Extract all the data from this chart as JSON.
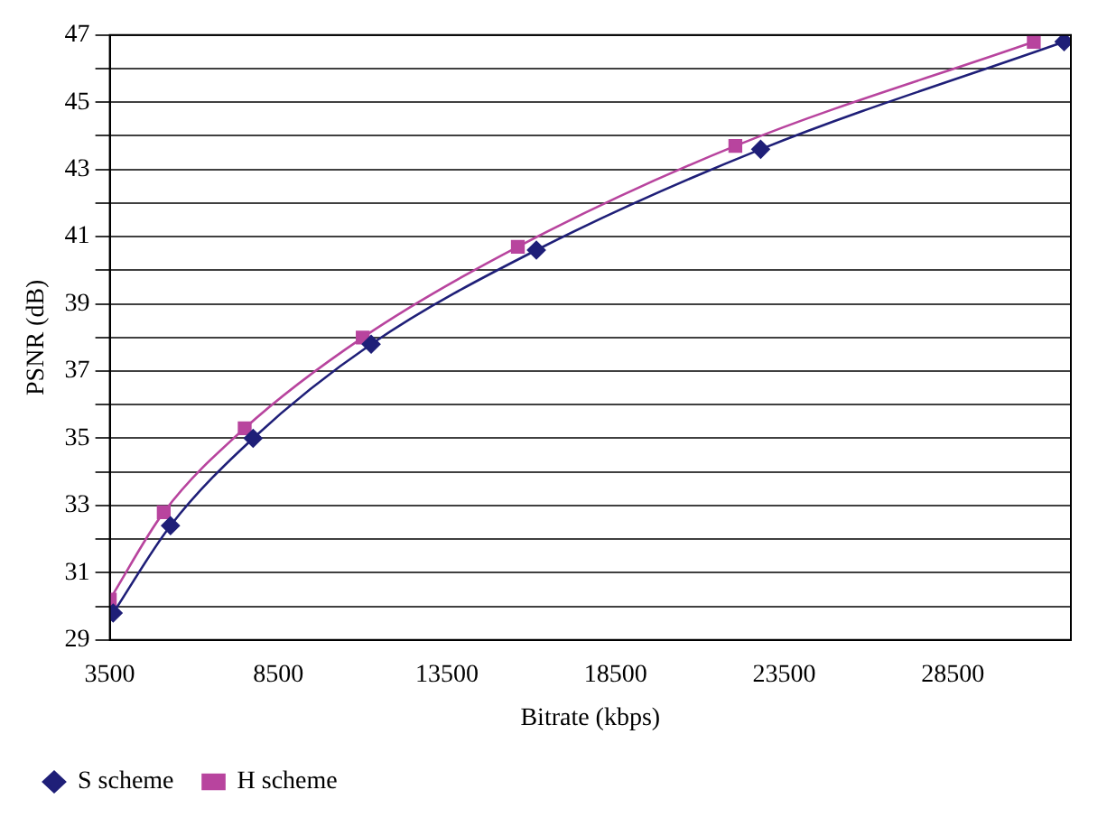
{
  "chart_data": {
    "type": "line",
    "xlabel": "Bitrate (kbps)",
    "ylabel": "PSNR (dB)",
    "xlim": [
      3500,
      32000
    ],
    "xticks": [
      3500,
      8500,
      13500,
      18500,
      23500,
      28500
    ],
    "ylim": [
      29,
      47
    ],
    "yticks": [
      29,
      {
        "value": 30,
        "label": null
      },
      31,
      {
        "value": 32,
        "label": null
      },
      33,
      {
        "value": 34,
        "label": null
      },
      35,
      {
        "value": 36,
        "label": null
      },
      37,
      {
        "value": 38,
        "label": null
      },
      39,
      {
        "value": 40,
        "label": null
      },
      41,
      {
        "value": 42,
        "label": null
      },
      43,
      {
        "value": 44,
        "label": null
      },
      45,
      {
        "value": 46,
        "label": null
      },
      47
    ],
    "grid": "y",
    "legend": "bottom left",
    "series": [
      {
        "name": "S scheme",
        "color": "#1f1f78",
        "marker": "diamond",
        "x": [
          3600,
          5300,
          7750,
          11250,
          16150,
          22800,
          31800
        ],
        "values": [
          29.8,
          32.4,
          35.0,
          37.8,
          40.6,
          43.6,
          46.8
        ]
      },
      {
        "name": "H scheme",
        "color": "#b8449e",
        "marker": "square",
        "x": [
          3500,
          5100,
          7500,
          11000,
          15600,
          22050,
          30900
        ],
        "values": [
          30.2,
          32.8,
          35.3,
          38.0,
          40.7,
          43.7,
          46.8
        ]
      }
    ]
  }
}
